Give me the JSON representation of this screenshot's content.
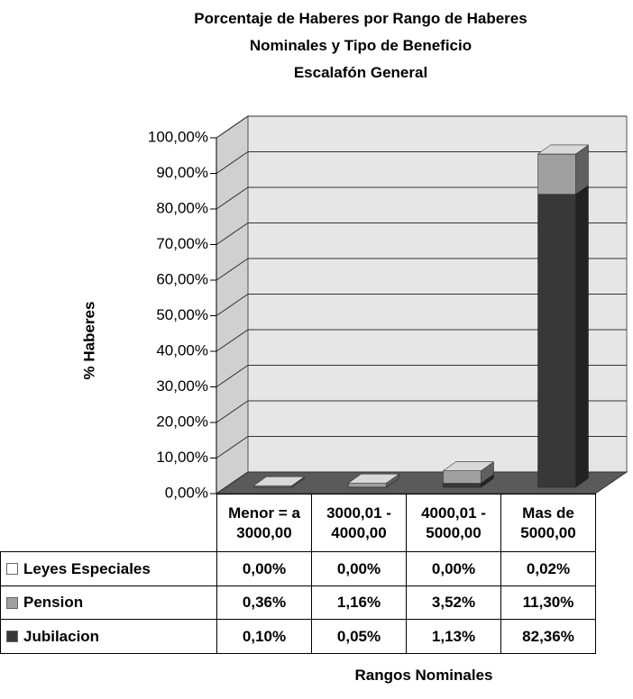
{
  "chart_data": {
    "type": "bar",
    "stacked": true,
    "three_d": true,
    "title": "Porcentaje de Haberes por Rango de Haberes Nominales y Tipo de Beneficio",
    "subtitle": "Escalafón General",
    "y_label": "% Haberes",
    "x_label": "Rangos Nominales",
    "categories": [
      "Menor = a 3000,00",
      "3000,01 - 4000,00",
      "4000,01 - 5000,00",
      "Mas de 5000,00"
    ],
    "series": [
      {
        "name": "Leyes Especiales",
        "color": "#ffffff",
        "values": [
          0,
          0,
          0,
          0.02
        ],
        "value_labels": [
          "0,00%",
          "0,00%",
          "0,00%",
          "0,02%"
        ]
      },
      {
        "name": "Pension",
        "color": "#a0a0a0",
        "values": [
          0.36,
          1.16,
          3.52,
          11.3
        ],
        "value_labels": [
          "0,36%",
          "1,16%",
          "3,52%",
          "11,30%"
        ]
      },
      {
        "name": "Jubilacion",
        "color": "#383838",
        "values": [
          0.1,
          0.05,
          1.13,
          82.36
        ],
        "value_labels": [
          "0,10%",
          "0,05%",
          "1,13%",
          "82,36%"
        ]
      }
    ],
    "stack_order": [
      "Jubilacion",
      "Pension",
      "Leyes Especiales"
    ],
    "ylim": [
      0,
      100
    ],
    "yticks": [
      {
        "value": 0,
        "label": "0,00%"
      },
      {
        "value": 10,
        "label": "10,00%"
      },
      {
        "value": 20,
        "label": "20,00%"
      },
      {
        "value": 30,
        "label": "30,00%"
      },
      {
        "value": 40,
        "label": "40,00%"
      },
      {
        "value": 50,
        "label": "50,00%"
      },
      {
        "value": 60,
        "label": "60,00%"
      },
      {
        "value": 70,
        "label": "70,00%"
      },
      {
        "value": 80,
        "label": "80,00%"
      },
      {
        "value": 90,
        "label": "90,00%"
      },
      {
        "value": 100,
        "label": "100,00%"
      }
    ],
    "grid": true
  }
}
